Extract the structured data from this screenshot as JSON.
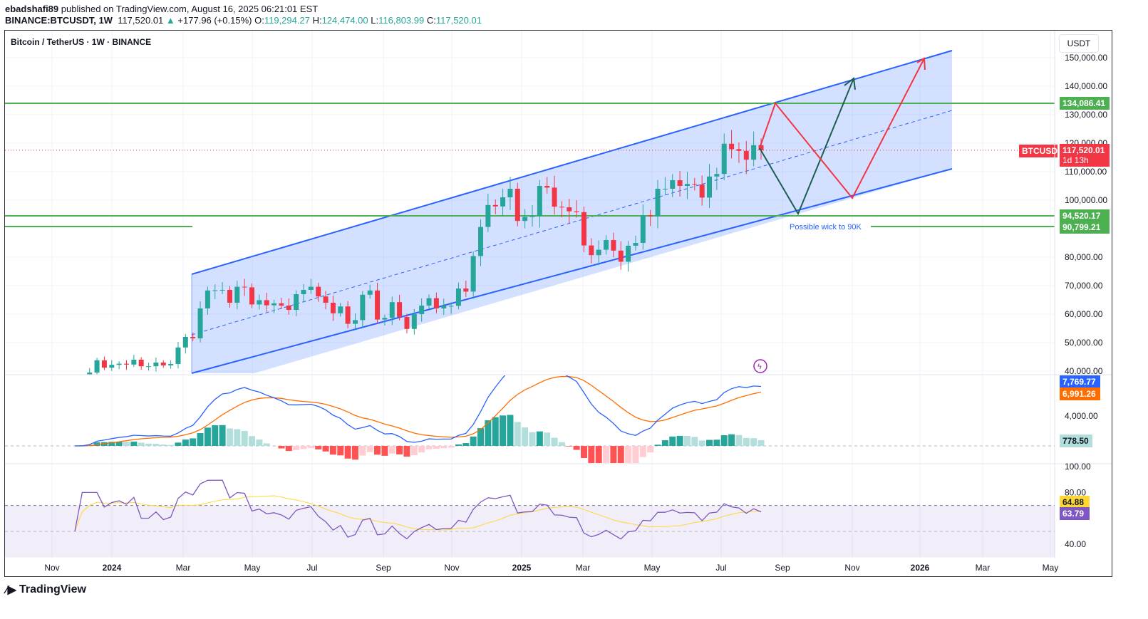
{
  "header": {
    "author": "ebadshafi89",
    "published": "published on TradingView.com, August 16, 2025 06:21:01 EST",
    "symbol": "BINANCE:BTCUSDT, 1W",
    "last": "117,520.01",
    "change": "+177.96 (+0.15%)",
    "o": "119,294.27",
    "h": "124,474.00",
    "l": "116,803.99",
    "c": "117,520.01"
  },
  "chart_title": "Bitcoin / TetherUS · 1W · BINANCE",
  "currency_button": "USDT",
  "colors": {
    "up": "#26a69a",
    "down": "#f23645",
    "channel": "#2962ff",
    "level": "#4caf50",
    "macd": "#2962ff",
    "signal": "#ff6d00",
    "rsi": "#7e57c2",
    "rsi_ma": "#fdd835"
  },
  "chart_data": {
    "type": "candlestick",
    "symbol": "BTCUSDT",
    "interval": "1W",
    "weekly_closes_k": [
      37.5,
      37.7,
      39.5,
      43.8,
      41.2,
      42.2,
      42.6,
      42.3,
      44.0,
      41.7,
      41.7,
      43.0,
      42.0,
      42.5,
      48.3,
      52.0,
      51.5,
      62.0,
      68.3,
      68.4,
      68.5,
      64.0,
      69.6,
      69.4,
      63.4,
      64.9,
      63.1,
      63.8,
      63.0,
      61.5,
      67.0,
      68.5,
      69.6,
      66.2,
      64.0,
      60.3,
      62.7,
      56.6,
      57.9,
      66.8,
      68.3,
      58.1,
      58.7,
      64.2,
      59.0,
      54.8,
      60.0,
      63.0,
      65.6,
      62.0,
      62.9,
      62.9,
      69.0,
      67.9,
      80.4,
      90.6,
      98.3,
      97.8,
      101.0,
      104.0,
      92.7,
      94.1,
      94.5,
      105.0,
      104.4,
      97.7,
      97.5,
      96.1,
      95.8,
      84.1,
      80.7,
      82.6,
      86.0,
      82.3,
      78.4,
      84.0,
      85.0,
      94.7,
      94.3,
      104.0,
      104.0,
      107.0,
      105.0,
      105.7,
      105.5,
      100.9,
      108.3,
      109.2,
      119.8,
      117.9,
      117.3,
      114.2,
      119.3,
      117.5
    ],
    "price_ticks": [
      "150,000.00",
      "140,000.00",
      "130,000.00",
      "120,000.00",
      "110,000.00",
      "100,000.00",
      "80,000.00",
      "70,000.00",
      "60,000.00",
      "50,000.00",
      "40,000.00"
    ],
    "x_ticks": [
      "Nov",
      "2024",
      "Mar",
      "May",
      "Jul",
      "Sep",
      "Nov",
      "2025",
      "Mar",
      "May",
      "Jul",
      "Sep",
      "Nov",
      "2026",
      "Mar",
      "May"
    ],
    "levels": [
      {
        "value": "134,086.41"
      },
      {
        "value": "94,520.17"
      },
      {
        "value": "90,799.21"
      }
    ],
    "current_price_label": {
      "symbol": "BTCUSDT",
      "price": "117,520.01",
      "countdown": "1d 13h"
    },
    "annotation": "Possible wick to 90K",
    "macd": {
      "ticks": [
        "4,000.00"
      ],
      "macd_label": "7,769.77",
      "signal_label": "6,991.26",
      "hist_label": "778.50"
    },
    "rsi": {
      "ticks": [
        "100.00",
        "80.00",
        "40.00"
      ],
      "ma_label": "64.88",
      "rsi_label": "63.79"
    }
  },
  "footer": {
    "brand": "TradingView"
  }
}
